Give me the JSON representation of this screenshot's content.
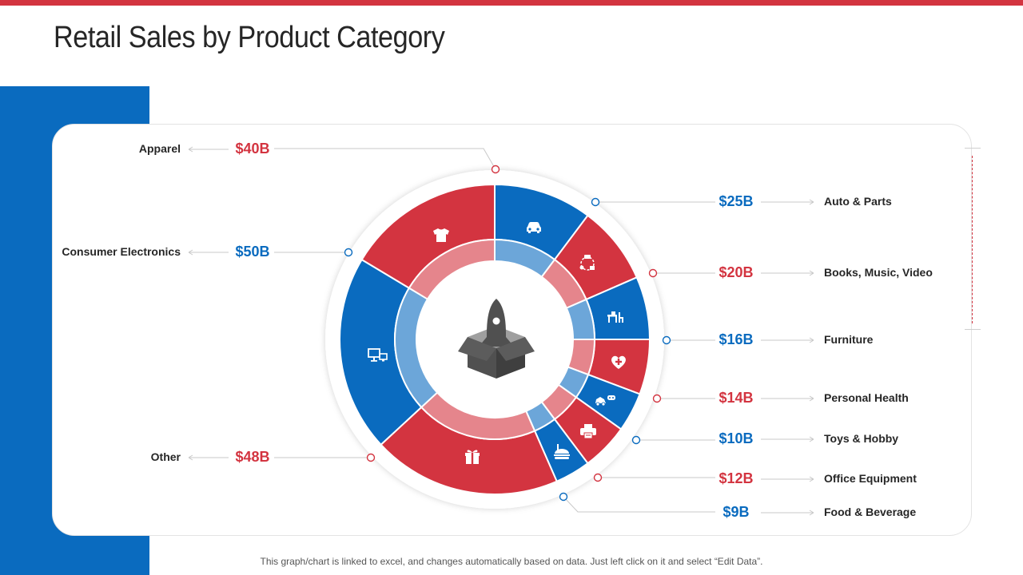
{
  "title": "Retail Sales by Product Category",
  "footnote": "This graph/chart is linked to excel,  and changes automatically based on data. Just left click on it and select “Edit Data”.",
  "colors": {
    "red": "#d33440",
    "blue": "#0a6bbf",
    "text": "#262626"
  },
  "chart_data": {
    "type": "pie",
    "title": "Retail Sales by Product Category",
    "unit": "$B",
    "categories": [
      "Auto & Parts",
      "Books, Music, Video",
      "Furniture",
      "Personal Health",
      "Toys & Hobby",
      "Office Equipment",
      "Food & Beverage",
      "Other",
      "Consumer Electronics",
      "Apparel"
    ],
    "values": [
      25,
      20,
      16,
      14,
      10,
      12,
      9,
      48,
      50,
      40
    ],
    "value_labels": [
      "$25B",
      "$20B",
      "$16B",
      "$14B",
      "$10B",
      "$12B",
      "$9B",
      "$48B",
      "$50B",
      "$40B"
    ],
    "colors": [
      "#0a6bbf",
      "#d33440",
      "#0a6bbf",
      "#d33440",
      "#0a6bbf",
      "#d33440",
      "#0a6bbf",
      "#d33440",
      "#0a6bbf",
      "#d33440"
    ],
    "icons": [
      "car-icon",
      "media-icon",
      "furniture-icon",
      "health-icon",
      "toys-icon",
      "printer-icon",
      "food-icon",
      "gift-icon",
      "computer-icon",
      "shirt-icon"
    ],
    "center_icon": "rocket-box-icon"
  }
}
